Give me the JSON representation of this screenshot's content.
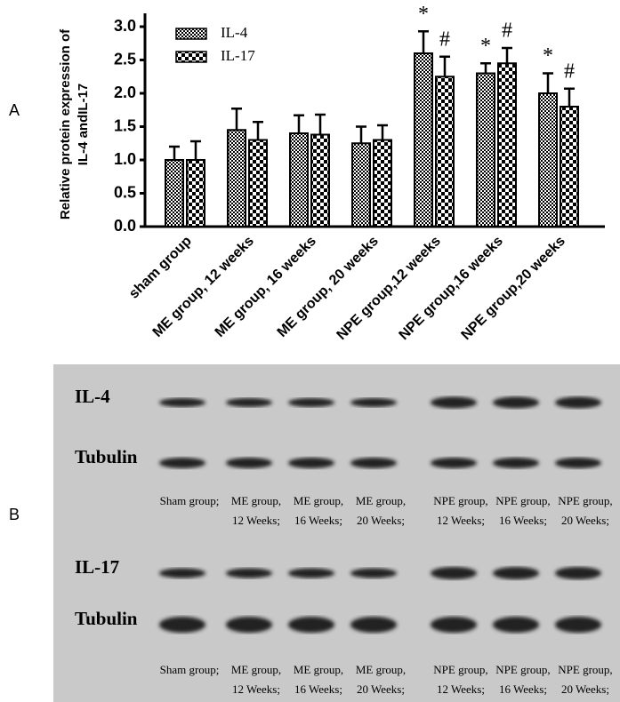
{
  "panels": {
    "a": "A",
    "b": "B"
  },
  "chart_data": {
    "type": "bar",
    "ylabel": [
      "Relative protein expression of",
      "IL-4 andIL-17"
    ],
    "categories": [
      "sham group",
      "ME group, 12 weeks",
      "ME group, 16 weeks",
      "ME group, 20 weeks",
      "NPE group,12 weeks",
      "NPE group,16 weeks",
      "NPE group,20 weeks"
    ],
    "series": [
      {
        "name": "IL-4",
        "color": "#000000",
        "values": [
          1.0,
          1.45,
          1.4,
          1.25,
          2.6,
          2.3,
          2.0
        ],
        "errors": [
          0.2,
          0.32,
          0.27,
          0.25,
          0.33,
          0.15,
          0.3
        ],
        "annotations": [
          null,
          null,
          null,
          null,
          "*",
          "*",
          "*"
        ]
      },
      {
        "name": "IL-17",
        "color": "#000000",
        "values": [
          1.0,
          1.3,
          1.38,
          1.3,
          2.25,
          2.45,
          1.8
        ],
        "errors": [
          0.28,
          0.27,
          0.3,
          0.22,
          0.3,
          0.23,
          0.27
        ],
        "annotations": [
          null,
          null,
          null,
          null,
          "#",
          "#",
          "#"
        ]
      }
    ],
    "ylim": [
      0,
      3.2
    ],
    "yticks": [
      {
        "value": 0,
        "label": "0.0"
      },
      {
        "value": 0.5,
        "label": "0.5"
      },
      {
        "value": 1,
        "label": "1.0"
      },
      {
        "value": 1.5,
        "label": "1.5"
      },
      {
        "value": 2,
        "label": "2.0"
      },
      {
        "value": 2.5,
        "label": "2.5"
      },
      {
        "value": 3,
        "label": "3.0"
      }
    ],
    "legend": "upper left",
    "grid": false
  },
  "blot": {
    "sections": [
      {
        "rows": [
          "IL-4",
          "Tubulin"
        ],
        "lanes": [
          [
            "Sham group;"
          ],
          [
            "ME group,",
            "12 Weeks;"
          ],
          [
            "ME group,",
            "16 Weeks;"
          ],
          [
            "ME group,",
            "20 Weeks;"
          ],
          [
            "NPE group,",
            "12 Weeks;"
          ],
          [
            "NPE group,",
            "16 Weeks;"
          ],
          [
            "NPE group,",
            "20 Weeks;"
          ]
        ]
      },
      {
        "rows": [
          "IL-17",
          "Tubulin"
        ],
        "lanes": [
          [
            "Sham group;"
          ],
          [
            "ME group,",
            "12 Weeks;"
          ],
          [
            "ME group,",
            "16 Weeks;"
          ],
          [
            "ME group,",
            "20 Weeks;"
          ],
          [
            "NPE group,",
            "12 Weeks;"
          ],
          [
            "NPE group,",
            "16 Weeks;"
          ],
          [
            "NPE group,",
            "20 Weeks;"
          ]
        ]
      }
    ]
  }
}
